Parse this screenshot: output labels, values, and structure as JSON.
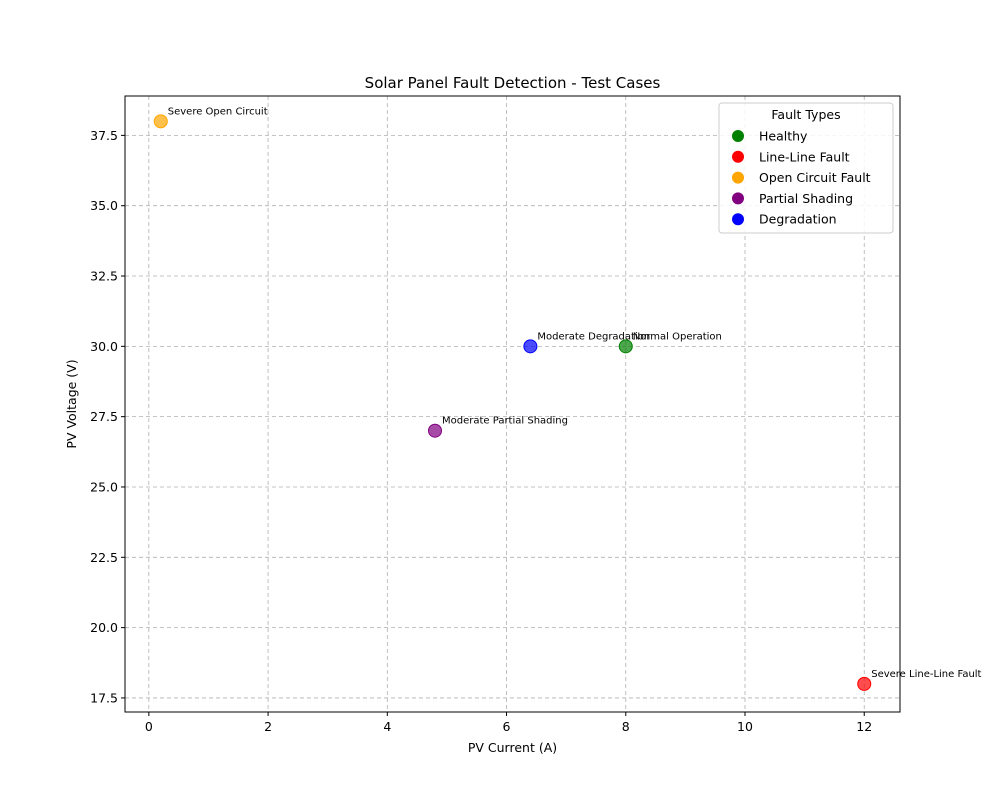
{
  "chart_data": {
    "type": "scatter",
    "title": "Solar Panel Fault Detection - Test Cases",
    "xlabel": "PV Current (A)",
    "ylabel": "PV Voltage (V)",
    "xlim": [
      -0.4,
      12.6
    ],
    "ylim": [
      17.0,
      38.9
    ],
    "xticks": [
      0,
      2,
      4,
      6,
      8,
      10,
      12
    ],
    "xtick_labels": [
      "0",
      "2",
      "4",
      "6",
      "8",
      "10",
      "12"
    ],
    "yticks": [
      17.5,
      20.0,
      22.5,
      25.0,
      27.5,
      30.0,
      32.5,
      35.0,
      37.5
    ],
    "ytick_labels": [
      "17.5",
      "20.0",
      "22.5",
      "25.0",
      "27.5",
      "30.0",
      "32.5",
      "35.0",
      "37.5"
    ],
    "grid": true,
    "legend": {
      "title": "Fault Types",
      "placement": "top-right",
      "entries": [
        {
          "label": "Healthy",
          "color": "#008000"
        },
        {
          "label": "Line-Line Fault",
          "color": "#ff0000"
        },
        {
          "label": "Open Circuit Fault",
          "color": "#ffa500"
        },
        {
          "label": "Partial Shading",
          "color": "#800080"
        },
        {
          "label": "Degradation",
          "color": "#0000ff"
        }
      ]
    },
    "points": [
      {
        "x": 8.0,
        "y": 30.0,
        "label": "Normal Operation",
        "color": "#008000"
      },
      {
        "x": 12.0,
        "y": 18.0,
        "label": "Severe Line-Line Fault",
        "color": "#ff0000"
      },
      {
        "x": 0.2,
        "y": 38.0,
        "label": "Severe Open Circuit",
        "color": "#ffa500"
      },
      {
        "x": 4.8,
        "y": 27.0,
        "label": "Moderate Partial Shading",
        "color": "#800080"
      },
      {
        "x": 6.4,
        "y": 30.0,
        "label": "Moderate Degradation",
        "color": "#0000ff"
      }
    ]
  }
}
